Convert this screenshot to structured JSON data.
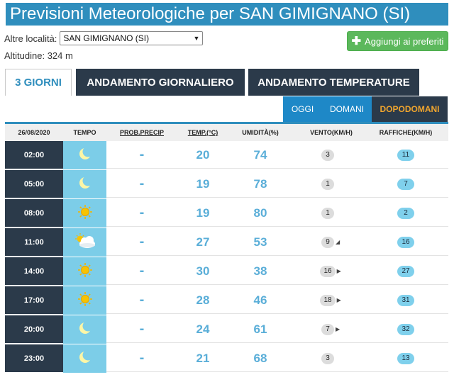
{
  "header": {
    "title": "Previsioni Meteorologiche per SAN GIMIGNANO (SI)"
  },
  "location": {
    "label": "Altre località:",
    "selected": "SAN GIMIGNANO (SI)",
    "altitude": "Altitudine: 324 m",
    "add_favorite_label": "Aggiungi ai preferiti"
  },
  "tabs": [
    {
      "label": "3 GIORNI",
      "active": true
    },
    {
      "label": "ANDAMENTO GIORNALIERO",
      "active": false
    },
    {
      "label": "ANDAMENTO TEMPERATURE",
      "active": false
    }
  ],
  "day_tabs": [
    {
      "label": "OGGI"
    },
    {
      "label": "DOMANI"
    },
    {
      "label": "DOPODOMANI",
      "active": true
    }
  ],
  "table": {
    "headers": {
      "date": "26/08/2020",
      "tempo": "TEMPO",
      "prob": "PROB.PRECIP",
      "temp": "TEMP.(°C)",
      "umid": "UMIDITÀ(%)",
      "vento": "VENTO(KM/H)",
      "raff": "RAFFICHE(KM/H)"
    },
    "rows": [
      {
        "time": "02:00",
        "icon": "moon-icon",
        "prec": "-",
        "temp": "20",
        "umid": "74",
        "vento": "3",
        "vento_dir": "",
        "raff": "11"
      },
      {
        "time": "05:00",
        "icon": "moon-icon",
        "prec": "-",
        "temp": "19",
        "umid": "78",
        "vento": "1",
        "vento_dir": "",
        "raff": "7"
      },
      {
        "time": "08:00",
        "icon": "sun-icon",
        "prec": "-",
        "temp": "19",
        "umid": "80",
        "vento": "1",
        "vento_dir": "",
        "raff": "2"
      },
      {
        "time": "11:00",
        "icon": "cloudy-icon",
        "prec": "-",
        "temp": "27",
        "umid": "53",
        "vento": "9",
        "vento_dir": "◢",
        "raff": "16"
      },
      {
        "time": "14:00",
        "icon": "sun-icon",
        "prec": "-",
        "temp": "30",
        "umid": "38",
        "vento": "16",
        "vento_dir": "▶",
        "raff": "27"
      },
      {
        "time": "17:00",
        "icon": "sun-icon",
        "prec": "-",
        "temp": "28",
        "umid": "46",
        "vento": "18",
        "vento_dir": "▶",
        "raff": "31"
      },
      {
        "time": "20:00",
        "icon": "moon-icon",
        "prec": "-",
        "temp": "24",
        "umid": "61",
        "vento": "7",
        "vento_dir": "▶",
        "raff": "32"
      },
      {
        "time": "23:00",
        "icon": "moon-icon",
        "prec": "-",
        "temp": "21",
        "umid": "68",
        "vento": "3",
        "vento_dir": "",
        "raff": "13"
      }
    ]
  },
  "colors": {
    "primary_blue": "#2f8ebd",
    "dark_navy": "#2b3a4a",
    "active_day": "#f0a52e",
    "value_blue": "#5aaed8",
    "icon_cell": "#7ccde8",
    "green_button": "#5cb85c"
  }
}
